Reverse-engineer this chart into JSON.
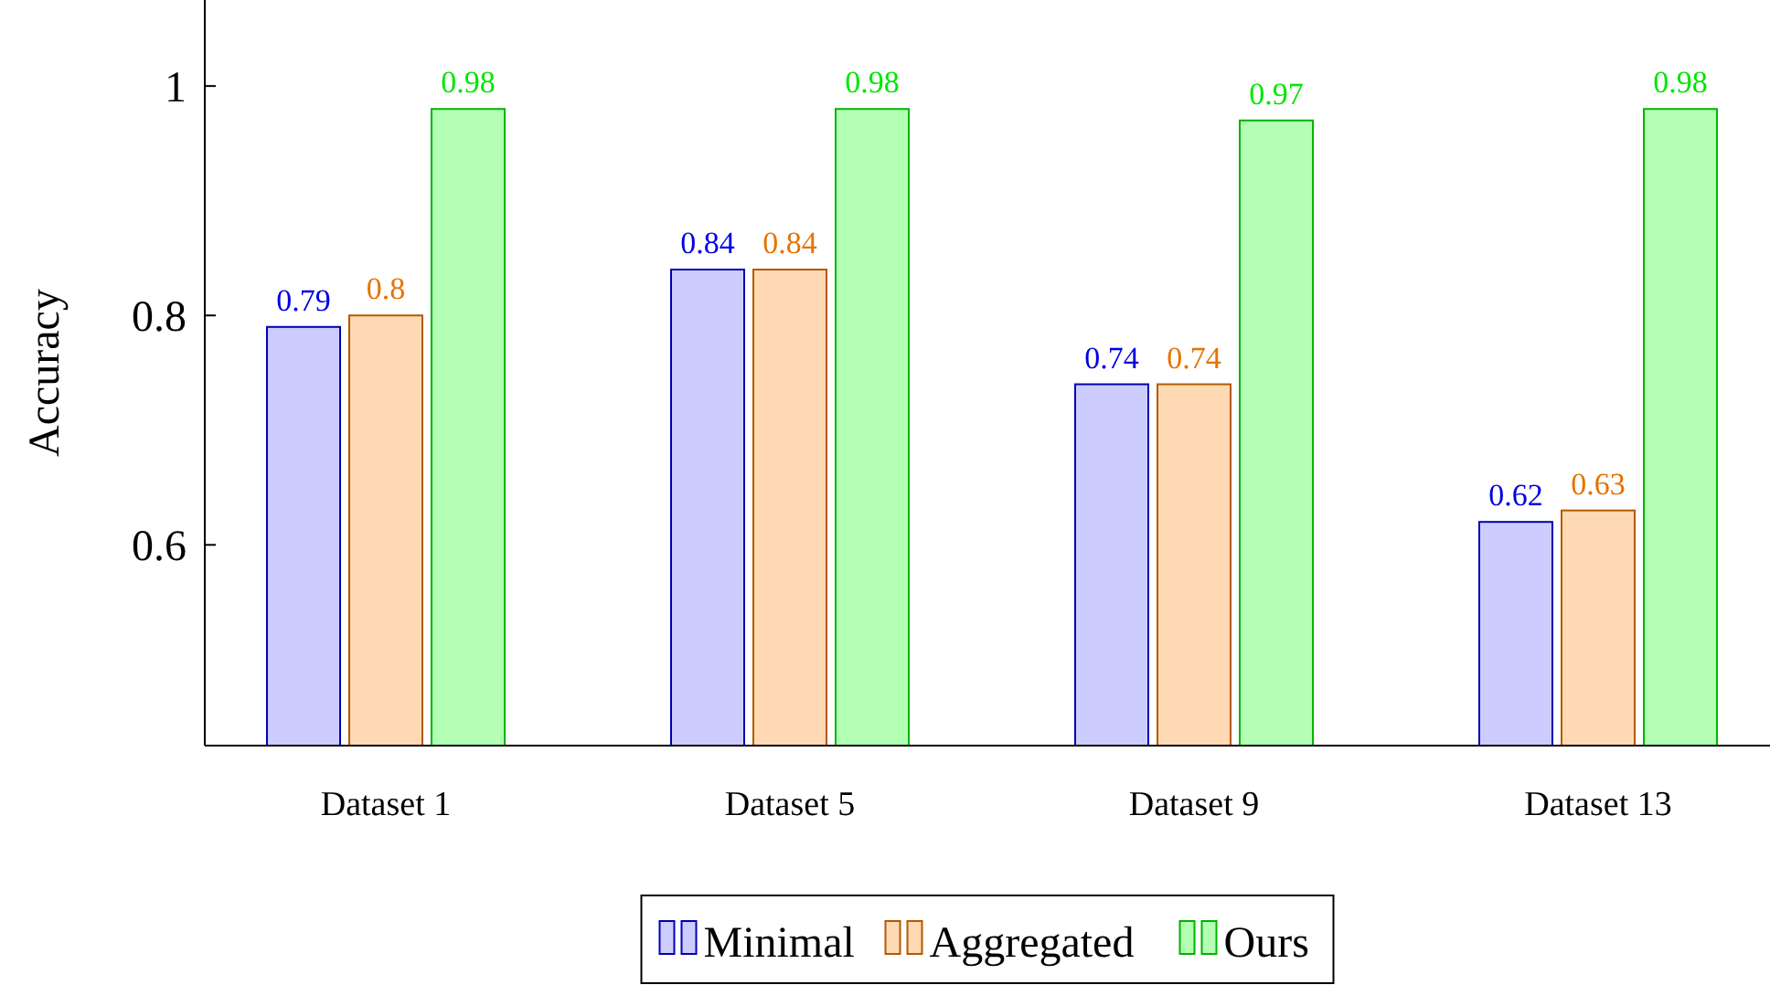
{
  "chart_data": {
    "type": "bar",
    "ylabel": "Accuracy",
    "categories": [
      "Dataset 1",
      "Dataset 5",
      "Dataset 9",
      "Dataset 13"
    ],
    "series": [
      {
        "name": "Minimal",
        "color": "#ccccff",
        "values": [
          0.79,
          0.84,
          0.74,
          0.62
        ]
      },
      {
        "name": "Aggregated",
        "color": "#ffd9b3",
        "values": [
          0.8,
          0.84,
          0.74,
          0.63
        ]
      },
      {
        "name": "Ours",
        "color": "#b3ffb3",
        "values": [
          0.98,
          0.98,
          0.97,
          0.98
        ]
      }
    ],
    "ylim": [
      0.425,
      1.075
    ],
    "yticks": [
      0.6,
      0.8,
      1
    ],
    "grid": false,
    "legend": "bottom",
    "data_labels": true
  }
}
